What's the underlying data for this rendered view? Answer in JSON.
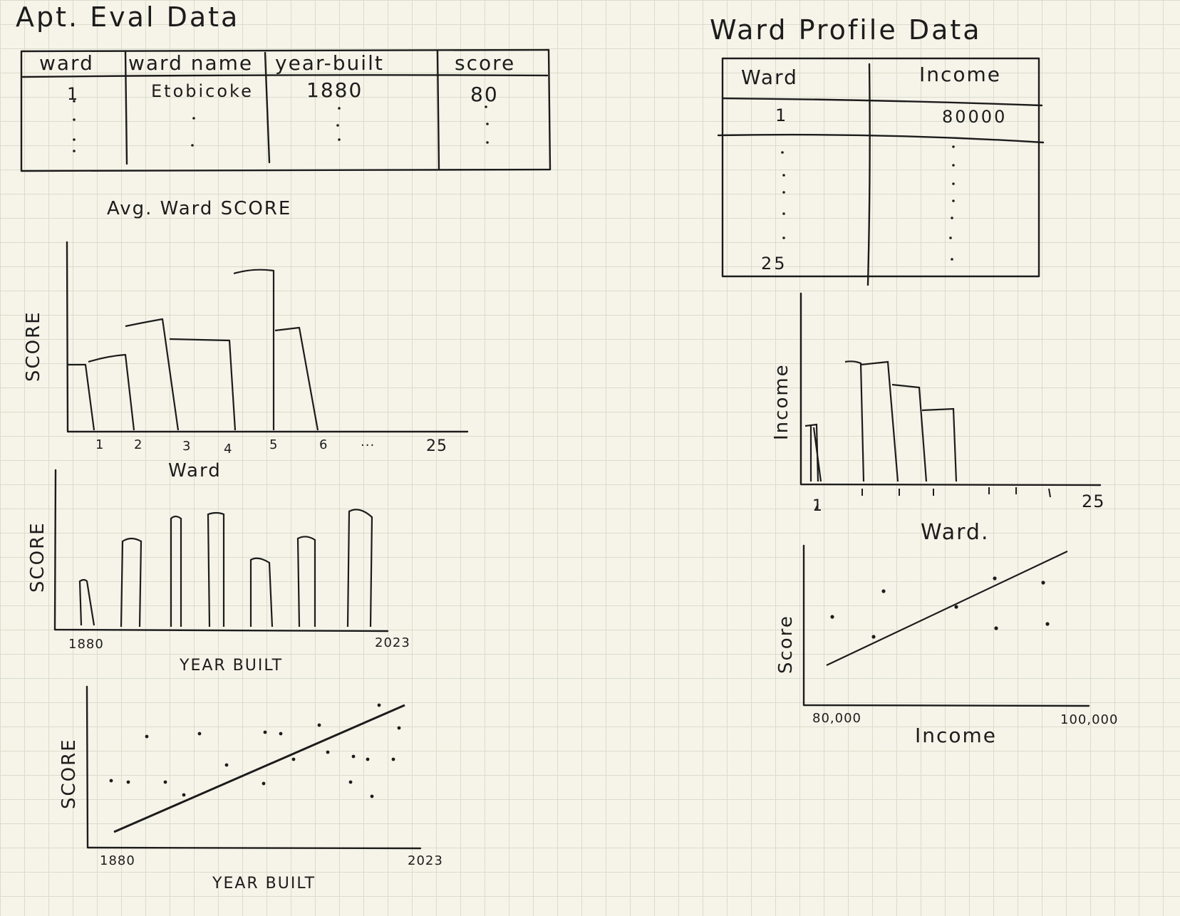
{
  "apt_eval": {
    "title": "Apt. Eval Data",
    "columns": [
      "ward",
      "ward name",
      "year-built",
      "score"
    ],
    "first_row": [
      "1",
      "Etobicoke",
      "1880",
      "80"
    ]
  },
  "ward_profile": {
    "title": "Ward Profile Data",
    "columns": [
      "Ward",
      "Income"
    ],
    "first_row": [
      "1",
      "80000"
    ],
    "last_ward": "25"
  },
  "avg_ward_chart": {
    "title": "Avg. Ward SCORE",
    "ylabel": "SCORE",
    "xlabel": "Ward",
    "ticks": [
      "1",
      "2",
      "3",
      "4",
      "5",
      "6",
      "...",
      "25"
    ]
  },
  "year_bar_chart": {
    "ylabel": "SCORE",
    "xlabel": "YEAR BUILT",
    "xmin_label": "1880",
    "xmax_label": "2023"
  },
  "year_scatter": {
    "ylabel": "SCORE",
    "xlabel": "YEAR BUILT",
    "xmin_label": "1880",
    "xmax_label": "2023"
  },
  "income_bar_chart": {
    "ylabel": "Income",
    "xlabel": "Ward.",
    "first_tick": "1",
    "last_tick": "25"
  },
  "income_scatter": {
    "ylabel": "Score",
    "xlabel": "Income",
    "xmin_label": "80,000",
    "xmax_label": "100,000"
  },
  "colors": {
    "ink": "#1c1c1c",
    "paper": "#f6f4e9",
    "grid": "#d9dccb"
  }
}
